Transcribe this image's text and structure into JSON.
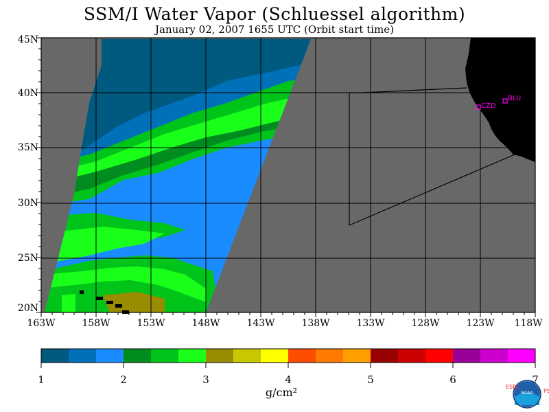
{
  "title": "SSM/I Water Vapor (Schluessel algorithm)",
  "subtitle": "January 02, 2007  1655 UTC  (Orbit start time)",
  "lat_labels": [
    "45N",
    "40N",
    "35N",
    "30N",
    "25N",
    "20N"
  ],
  "lon_labels": [
    "163W",
    "158W",
    "153W",
    "148W",
    "143W",
    "138W",
    "133W",
    "128W",
    "123W",
    "118W"
  ],
  "stations": [
    {
      "label": "CZD",
      "lat": 38.6,
      "lon": -123.2
    },
    {
      "label": "BLU",
      "lat": 39.3,
      "lon": -120.8
    }
  ],
  "colorbar": {
    "ticks": [
      "1",
      "2",
      "3",
      "4",
      "5",
      "6",
      "7"
    ],
    "unit": "g/cm²",
    "colors": [
      "#00597f",
      "#0070b8",
      "#1a8cff",
      "#008c1f",
      "#00c41a",
      "#1aff1a",
      "#998c00",
      "#c8c800",
      "#ffff00",
      "#ff4d00",
      "#ff7a00",
      "#ffa000",
      "#990000",
      "#cc0000",
      "#ff0000",
      "#990099",
      "#cc00cc",
      "#ff00ff"
    ]
  },
  "colors": {
    "no_data": "#686868",
    "land": "#000000",
    "marker": "#ff00ff"
  },
  "logo": {
    "left": "ESRL",
    "right": "PSD",
    "center": "NOAA"
  }
}
